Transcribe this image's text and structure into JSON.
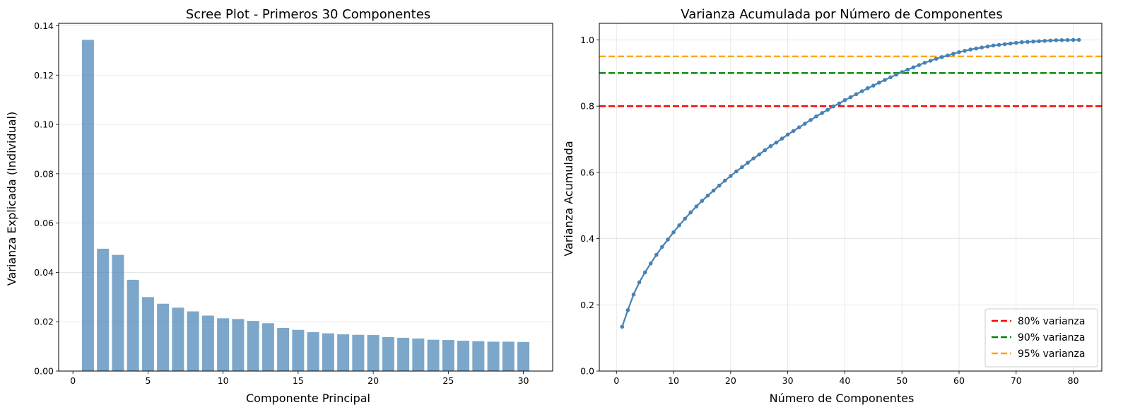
{
  "chart_data": [
    {
      "type": "bar",
      "title": "Scree Plot - Primeros 30 Componentes",
      "xlabel": "Componente Principal",
      "ylabel": "Varianza Explicada (Individual)",
      "xlim": [
        -0.95,
        31.95
      ],
      "ylim": [
        0,
        0.141
      ],
      "xticks": [
        0,
        5,
        10,
        15,
        20,
        25,
        30
      ],
      "xtick_labels": [
        "0",
        "5",
        "10",
        "15",
        "20",
        "25",
        "30"
      ],
      "yticks": [
        0,
        0.02,
        0.04,
        0.06,
        0.08,
        0.1,
        0.12,
        0.14
      ],
      "ytick_labels": [
        "0.00",
        "0.02",
        "0.04",
        "0.06",
        "0.08",
        "0.10",
        "0.12",
        "0.14"
      ],
      "grid": "y",
      "bar_color": "#4682b4",
      "categories": [
        1,
        2,
        3,
        4,
        5,
        6,
        7,
        8,
        9,
        10,
        11,
        12,
        13,
        14,
        15,
        16,
        17,
        18,
        19,
        20,
        21,
        22,
        23,
        24,
        25,
        26,
        27,
        28,
        29,
        30
      ],
      "values": [
        0.1343,
        0.0496,
        0.0471,
        0.037,
        0.03,
        0.0273,
        0.0257,
        0.0242,
        0.0225,
        0.0214,
        0.0211,
        0.0203,
        0.0194,
        0.0175,
        0.0167,
        0.0158,
        0.0153,
        0.0149,
        0.0147,
        0.0146,
        0.0138,
        0.0135,
        0.0132,
        0.0127,
        0.0126,
        0.0123,
        0.0121,
        0.0119,
        0.0119,
        0.0118
      ]
    },
    {
      "type": "line",
      "title": "Varianza Acumulada por Número de Componentes",
      "xlabel": "Número de Componentes",
      "ylabel": "Varianza Acumulada",
      "xlim": [
        -3.0,
        85.0
      ],
      "ylim": [
        0,
        1.05
      ],
      "xticks": [
        0,
        10,
        20,
        30,
        40,
        50,
        60,
        70,
        80
      ],
      "xtick_labels": [
        "0",
        "10",
        "20",
        "30",
        "40",
        "50",
        "60",
        "70",
        "80"
      ],
      "yticks": [
        0,
        0.2,
        0.4,
        0.6,
        0.8,
        1.0
      ],
      "ytick_labels": [
        "0.0",
        "0.2",
        "0.4",
        "0.6",
        "0.8",
        "1.0"
      ],
      "grid": "both",
      "line_color": "#4682b4",
      "x": [
        1,
        2,
        3,
        4,
        5,
        6,
        7,
        8,
        9,
        10,
        11,
        12,
        13,
        14,
        15,
        16,
        17,
        18,
        19,
        20,
        21,
        22,
        23,
        24,
        25,
        26,
        27,
        28,
        29,
        30,
        31,
        32,
        33,
        34,
        35,
        36,
        37,
        38,
        39,
        40,
        41,
        42,
        43,
        44,
        45,
        46,
        47,
        48,
        49,
        50,
        51,
        52,
        53,
        54,
        55,
        56,
        57,
        58,
        59,
        60,
        61,
        62,
        63,
        64,
        65,
        66,
        67,
        68,
        69,
        70,
        71,
        72,
        73,
        74,
        75,
        76,
        77,
        78,
        79,
        80,
        81
      ],
      "values": [
        0.134,
        0.184,
        0.231,
        0.268,
        0.298,
        0.325,
        0.351,
        0.375,
        0.397,
        0.419,
        0.44,
        0.46,
        0.479,
        0.497,
        0.514,
        0.53,
        0.545,
        0.56,
        0.575,
        0.589,
        0.603,
        0.616,
        0.629,
        0.642,
        0.654,
        0.667,
        0.679,
        0.69,
        0.702,
        0.714,
        0.725,
        0.736,
        0.747,
        0.758,
        0.769,
        0.779,
        0.789,
        0.799,
        0.808,
        0.818,
        0.827,
        0.836,
        0.845,
        0.854,
        0.862,
        0.871,
        0.879,
        0.887,
        0.895,
        0.903,
        0.91,
        0.917,
        0.924,
        0.931,
        0.937,
        0.943,
        0.948,
        0.953,
        0.958,
        0.963,
        0.967,
        0.971,
        0.974,
        0.977,
        0.98,
        0.983,
        0.985,
        0.987,
        0.989,
        0.991,
        0.993,
        0.994,
        0.995,
        0.996,
        0.997,
        0.998,
        0.999,
        0.9993,
        0.9996,
        0.9998,
        1.0
      ],
      "reference_lines": [
        {
          "y": 0.8,
          "label": "80% varianza",
          "color": "#ff0000"
        },
        {
          "y": 0.9,
          "label": "90% varianza",
          "color": "#008000"
        },
        {
          "y": 0.95,
          "label": "95% varianza",
          "color": "#ffa500"
        }
      ],
      "legend": "lower-right"
    }
  ]
}
